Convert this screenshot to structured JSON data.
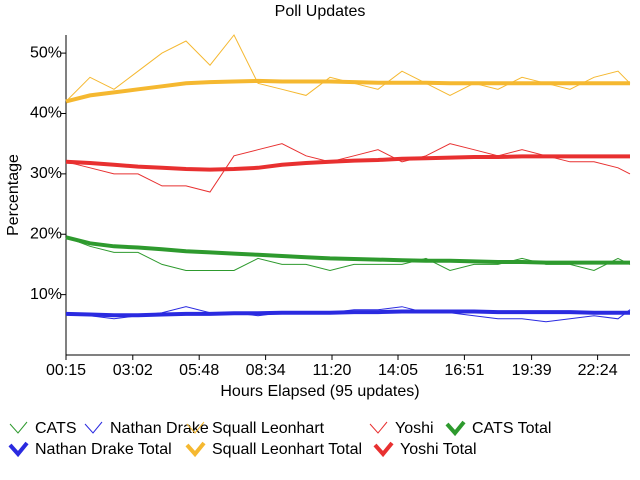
{
  "chart_data": {
    "type": "line",
    "title": "Poll Updates",
    "x_label": "Hours Elapsed (95 updates)",
    "y_label": "Percentage",
    "x": [
      0.25,
      1.25,
      2.25,
      3.25,
      4.25,
      5.25,
      6.25,
      7.25,
      8.25,
      9.25,
      10.25,
      11.25,
      12.25,
      13.25,
      14.25,
      15.25,
      16.25,
      17.25,
      18.25,
      19.25,
      20.25,
      21.25,
      22.25,
      23.25,
      23.75
    ],
    "xlim": [
      0.25,
      23.75
    ],
    "xticks": [
      {
        "value": 0.25,
        "label": "00:15"
      },
      {
        "value": 3.033,
        "label": "03:02"
      },
      {
        "value": 5.8,
        "label": "05:48"
      },
      {
        "value": 8.567,
        "label": "08:34"
      },
      {
        "value": 11.333,
        "label": "11:20"
      },
      {
        "value": 14.083,
        "label": "14:05"
      },
      {
        "value": 16.85,
        "label": "16:51"
      },
      {
        "value": 19.65,
        "label": "19:39"
      },
      {
        "value": 22.4,
        "label": "22:24"
      }
    ],
    "ylim": [
      0,
      53
    ],
    "yticks": [
      {
        "value": 10,
        "label": "10%"
      },
      {
        "value": 20,
        "label": "20%"
      },
      {
        "value": 30,
        "label": "30%"
      },
      {
        "value": 40,
        "label": "40%"
      },
      {
        "value": 50,
        "label": "50%"
      }
    ],
    "series": [
      {
        "name": "CATS",
        "color": "#2e9a2e",
        "line_width": 1,
        "values": [
          19.5,
          18,
          17,
          17,
          15,
          14,
          14,
          14,
          16,
          15,
          15,
          14,
          15,
          15,
          15,
          16,
          14,
          15,
          15,
          16,
          15,
          15,
          14,
          16,
          15
        ]
      },
      {
        "name": "Nathan Drake",
        "color": "#2a2ae0",
        "line_width": 1,
        "values": [
          7,
          6.5,
          6,
          6.5,
          7,
          8,
          7,
          7,
          6.5,
          7,
          7,
          7,
          7.5,
          7.5,
          8,
          7,
          7,
          6.5,
          6,
          6,
          5.5,
          6,
          6.5,
          6,
          7.5
        ]
      },
      {
        "name": "Squall Leonhart",
        "color": "#f5b830",
        "line_width": 1,
        "values": [
          42,
          46,
          44,
          47,
          50,
          52,
          48,
          53,
          45,
          44,
          43,
          46,
          45,
          44,
          47,
          45,
          43,
          45,
          44,
          46,
          45,
          44,
          46,
          47,
          45
        ]
      },
      {
        "name": "Yoshi",
        "color": "#e83030",
        "line_width": 1,
        "values": [
          32,
          31,
          30,
          30,
          28,
          28,
          27,
          33,
          34,
          35,
          33,
          32,
          33,
          34,
          32,
          33,
          35,
          34,
          33,
          34,
          33,
          32,
          32,
          31,
          30
        ]
      },
      {
        "name": "CATS Total",
        "color": "#2e9a2e",
        "line_width": 4,
        "values": [
          19.5,
          18.5,
          18,
          17.8,
          17.5,
          17.2,
          17,
          16.8,
          16.6,
          16.4,
          16.2,
          16,
          15.9,
          15.8,
          15.7,
          15.6,
          15.6,
          15.5,
          15.4,
          15.4,
          15.3,
          15.3,
          15.3,
          15.3,
          15.3
        ]
      },
      {
        "name": "Nathan Drake Total",
        "color": "#2a2ae0",
        "line_width": 4,
        "values": [
          6.8,
          6.7,
          6.6,
          6.6,
          6.7,
          6.8,
          6.8,
          6.9,
          6.9,
          7,
          7,
          7,
          7.1,
          7.1,
          7.2,
          7.2,
          7.2,
          7.2,
          7.1,
          7.1,
          7.1,
          7.1,
          7,
          7,
          7
        ]
      },
      {
        "name": "Squall Leonhart Total",
        "color": "#f5b830",
        "line_width": 4,
        "values": [
          42,
          43,
          43.5,
          44,
          44.5,
          45,
          45.2,
          45.3,
          45.4,
          45.3,
          45.3,
          45.3,
          45.2,
          45.1,
          45.1,
          45.1,
          45,
          45,
          45,
          45,
          45,
          45,
          45,
          45,
          45
        ]
      },
      {
        "name": "Yoshi Total",
        "color": "#e83030",
        "line_width": 4,
        "values": [
          32,
          31.8,
          31.5,
          31.2,
          31,
          30.8,
          30.7,
          30.8,
          31,
          31.5,
          31.8,
          32,
          32.2,
          32.3,
          32.5,
          32.6,
          32.7,
          32.8,
          32.8,
          32.9,
          32.9,
          32.9,
          32.9,
          32.9,
          32.9
        ]
      }
    ]
  }
}
